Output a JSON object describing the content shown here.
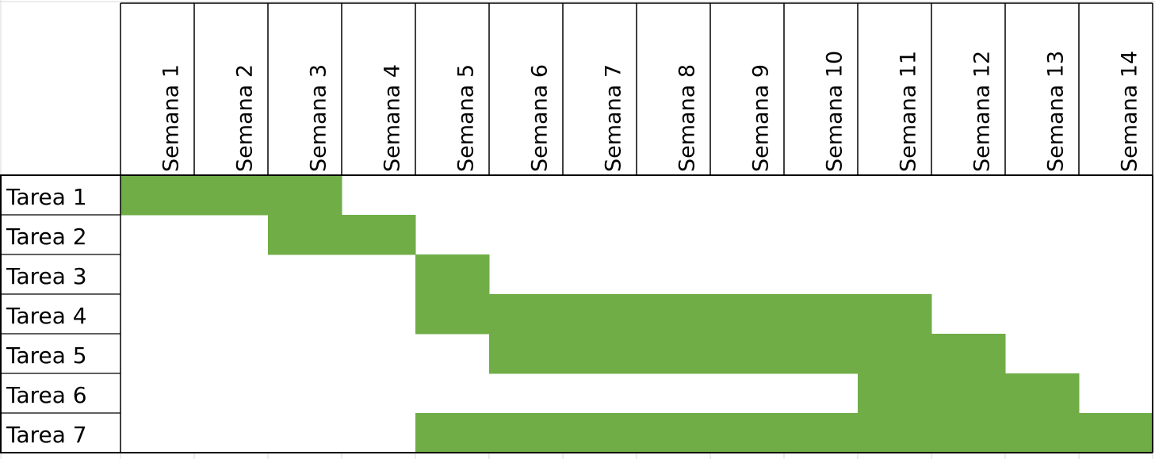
{
  "chart_data": {
    "type": "bar",
    "subtype": "gantt",
    "title": "",
    "xlabel": "",
    "ylabel": "",
    "bar_color": "#70AD47",
    "grid": true,
    "legend": "none",
    "weeks": [
      "Semana 1",
      "Semana 2",
      "Semana 3",
      "Semana 4",
      "Semana 5",
      "Semana 6",
      "Semana 7",
      "Semana 8",
      "Semana 9",
      "Semana 10",
      "Semana 11",
      "Semana 12",
      "Semana 13",
      "Semana 14"
    ],
    "tasks": [
      {
        "name": "Tarea 1",
        "start_week": 1,
        "end_week": 3
      },
      {
        "name": "Tarea 2",
        "start_week": 3,
        "end_week": 4
      },
      {
        "name": "Tarea 3",
        "start_week": 5,
        "end_week": 5
      },
      {
        "name": "Tarea 4",
        "start_week": 5,
        "end_week": 11
      },
      {
        "name": "Tarea 5",
        "start_week": 6,
        "end_week": 12
      },
      {
        "name": "Tarea 6",
        "start_week": 11,
        "end_week": 13
      },
      {
        "name": "Tarea 7",
        "start_week": 5,
        "end_week": 14
      }
    ]
  }
}
